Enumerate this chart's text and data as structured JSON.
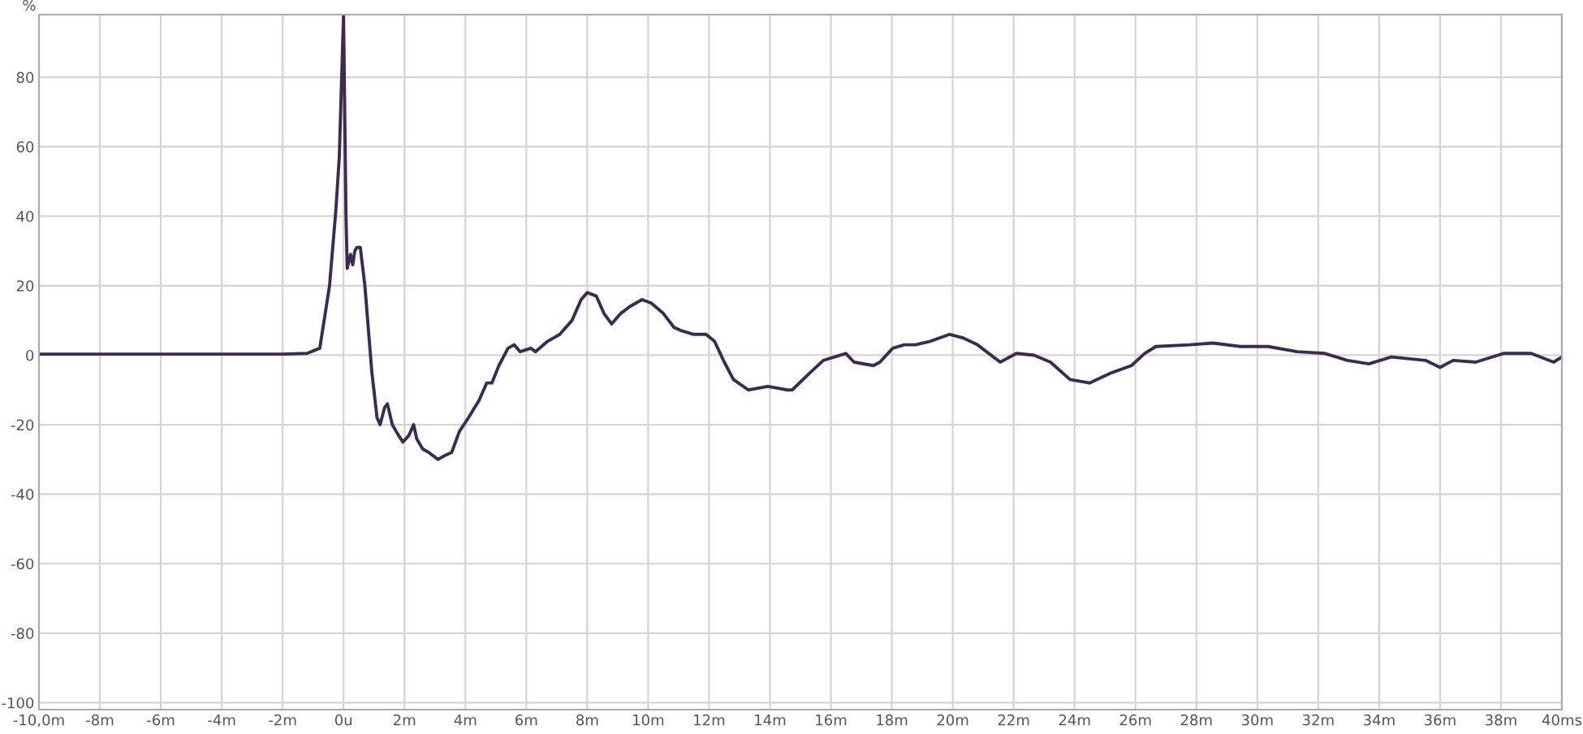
{
  "chart_data": {
    "type": "line",
    "ylabel": "%",
    "x": [
      -10,
      -6,
      -2,
      -1.2,
      -0.78,
      -0.46,
      -0.25,
      -0.14,
      0,
      0.08,
      0.12,
      0.23,
      0.3,
      0.37,
      0.44,
      0.55,
      0.7,
      0.93,
      1.1,
      1.2,
      1.35,
      1.44,
      1.6,
      1.8,
      1.95,
      2.15,
      2.3,
      2.4,
      2.6,
      2.8,
      3.1,
      3.3,
      3.55,
      3.8,
      4.1,
      4.45,
      4.7,
      4.87,
      5.1,
      5.4,
      5.6,
      5.8,
      6.15,
      6.3,
      6.7,
      7.1,
      7.5,
      7.8,
      8.0,
      8.3,
      8.55,
      8.8,
      9.1,
      9.4,
      9.8,
      10.1,
      10.5,
      10.85,
      11.1,
      11.5,
      11.9,
      12.18,
      12.5,
      12.8,
      13.29,
      13.93,
      14.57,
      14.73,
      15.32,
      15.75,
      16.12,
      16.49,
      16.76,
      17.4,
      17.61,
      18.03,
      18.41,
      18.78,
      19.26,
      19.9,
      20.33,
      20.81,
      21.56,
      22.09,
      22.67,
      23.21,
      23.85,
      24.49,
      25.23,
      25.87,
      26.3,
      26.67,
      27.79,
      28.54,
      29.44,
      30.35,
      31.31,
      32.22,
      32.96,
      33.66,
      34.4,
      35.52,
      36.0,
      36.43,
      37.17,
      38.08,
      38.99,
      39.73,
      40
    ],
    "series": [
      {
        "color": "#3d2a50",
        "values": [
          0.3,
          0.3,
          0.3,
          0.5,
          2,
          20,
          42,
          57,
          98,
          40,
          25,
          29,
          26,
          30,
          31,
          31,
          20,
          -5,
          -18,
          -20,
          -15,
          -14,
          -20,
          -23,
          -25,
          -23,
          -20,
          -24,
          -27,
          -28,
          -30,
          -29,
          -28,
          -22,
          -18,
          -13,
          -8,
          -8,
          -3,
          2,
          3,
          1,
          2,
          1,
          4,
          6,
          10,
          16,
          18,
          17,
          12,
          9,
          12,
          14,
          16,
          15,
          12,
          8,
          7,
          6,
          6,
          4,
          -2,
          -7,
          -10,
          -9,
          -10,
          -10,
          -5,
          -1.5,
          -0.5,
          0.5,
          -2,
          -3,
          -2,
          2,
          3,
          3,
          4,
          6,
          5,
          3,
          -2,
          0.5,
          0,
          -2,
          -7,
          -8,
          -5,
          -3,
          0.5,
          2.5,
          3,
          3.5,
          2.5,
          2.5,
          1,
          0.5,
          -1.5,
          -2.5,
          -0.5,
          -1.5,
          -3.5,
          -1.5,
          -2,
          0.5,
          0.5,
          -2,
          -0.5
        ]
      }
    ],
    "xlim": [
      -10,
      40
    ],
    "ylim": [
      -102,
      98
    ],
    "xticks": [
      {
        "value": -10,
        "label": "-10,0m"
      },
      {
        "value": -8,
        "label": "-8m"
      },
      {
        "value": -6,
        "label": "-6m"
      },
      {
        "value": -4,
        "label": "-4m"
      },
      {
        "value": -2,
        "label": "-2m"
      },
      {
        "value": 0,
        "label": "0u"
      },
      {
        "value": 2,
        "label": "2m"
      },
      {
        "value": 4,
        "label": "4m"
      },
      {
        "value": 6,
        "label": "6m"
      },
      {
        "value": 8,
        "label": "8m"
      },
      {
        "value": 10,
        "label": "10m"
      },
      {
        "value": 12,
        "label": "12m"
      },
      {
        "value": 14,
        "label": "14m"
      },
      {
        "value": 16,
        "label": "16m"
      },
      {
        "value": 18,
        "label": "18m"
      },
      {
        "value": 20,
        "label": "20m"
      },
      {
        "value": 22,
        "label": "22m"
      },
      {
        "value": 24,
        "label": "24m"
      },
      {
        "value": 26,
        "label": "26m"
      },
      {
        "value": 28,
        "label": "28m"
      },
      {
        "value": 30,
        "label": "30m"
      },
      {
        "value": 32,
        "label": "32m"
      },
      {
        "value": 34,
        "label": "34m"
      },
      {
        "value": 36,
        "label": "36m"
      },
      {
        "value": 38,
        "label": "38m"
      },
      {
        "value": 40,
        "label": "40ms"
      }
    ],
    "yticks": [
      -100,
      -80,
      -60,
      -40,
      -20,
      0,
      20,
      40,
      60,
      80
    ],
    "grid": true,
    "marker": "none",
    "line_style": "solid"
  }
}
